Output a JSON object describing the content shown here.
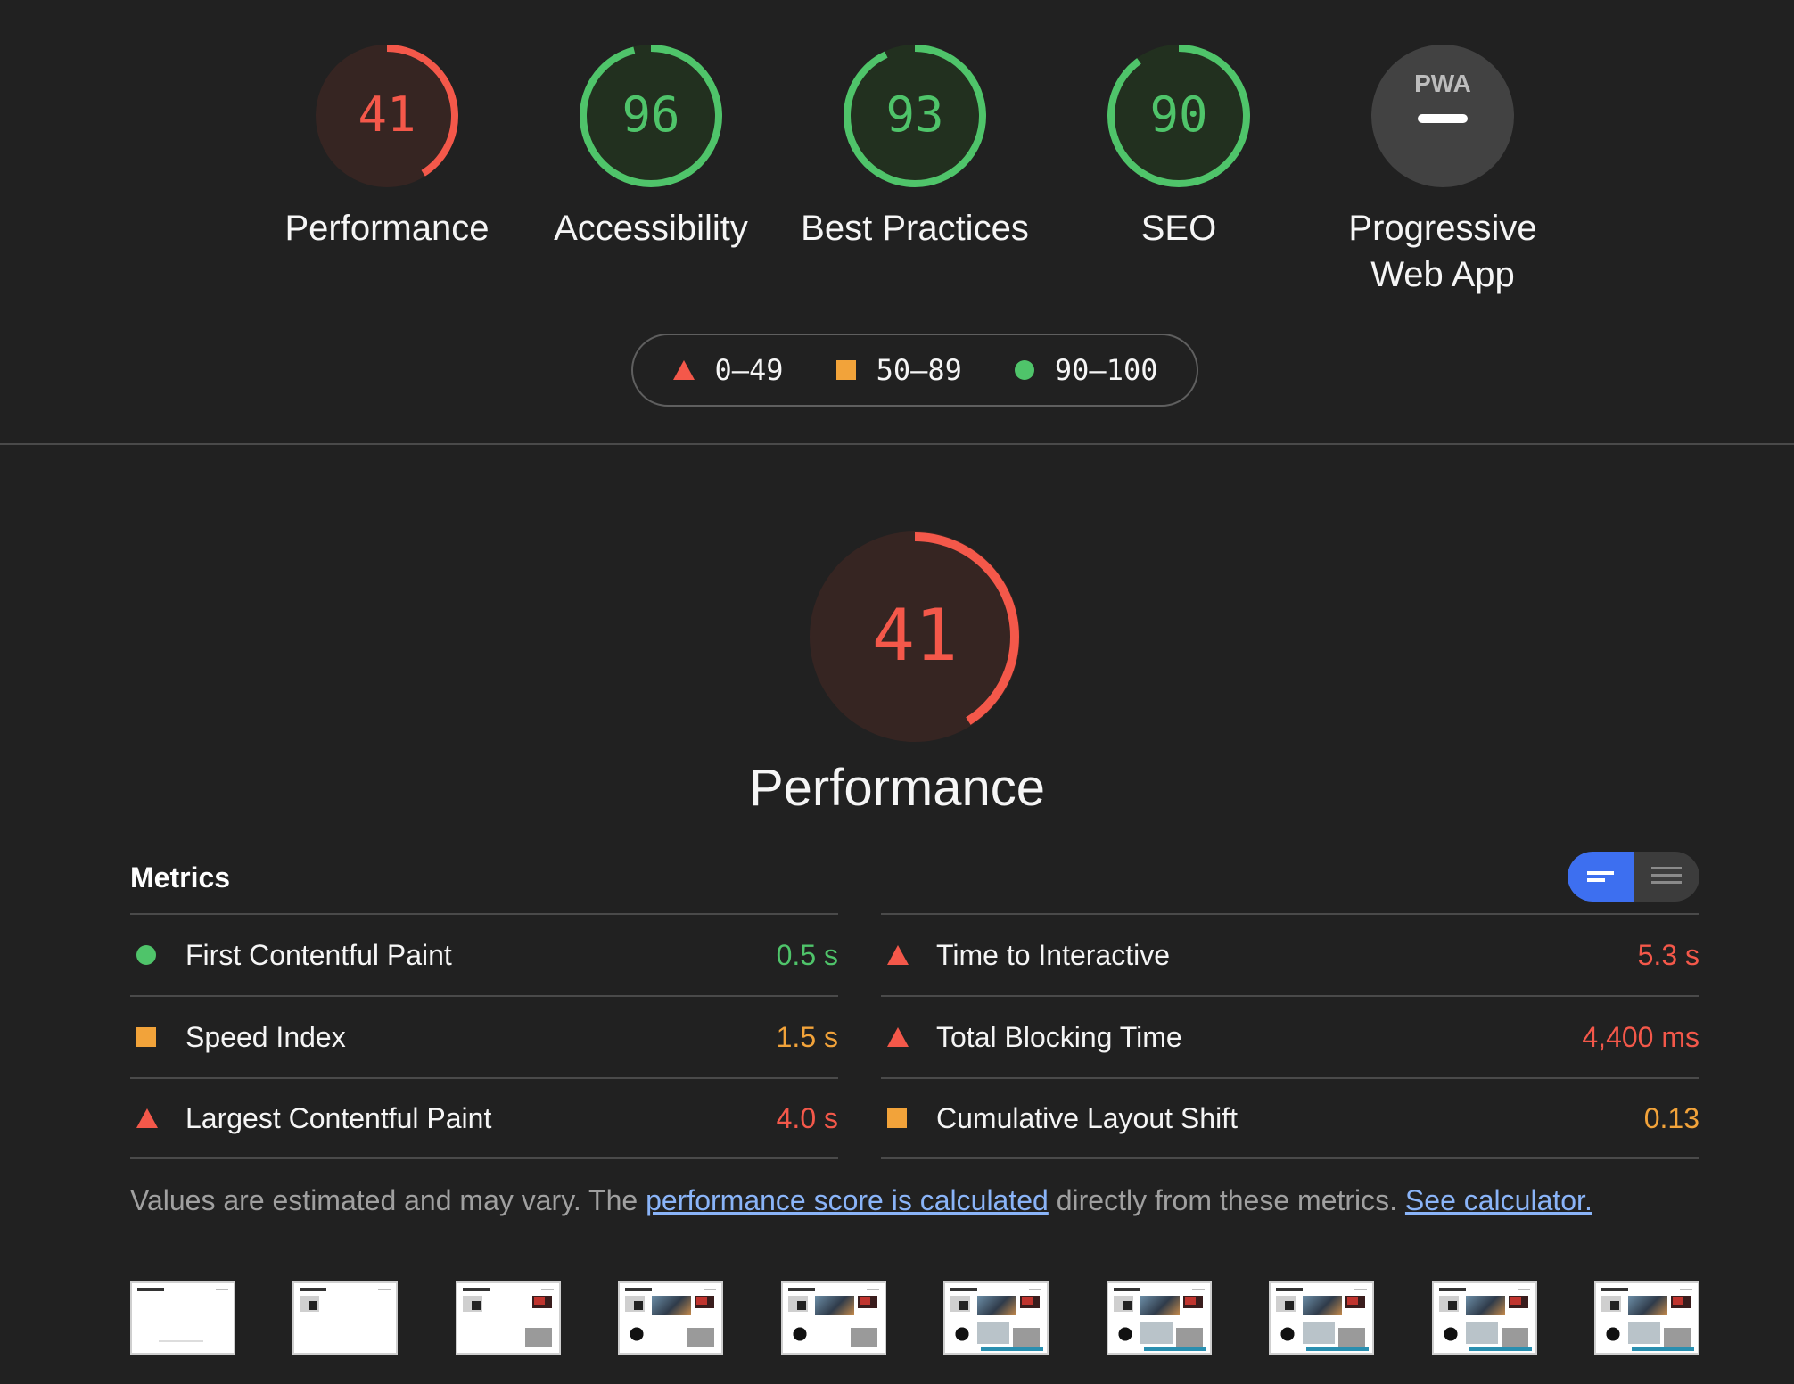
{
  "categories": [
    {
      "label": "Performance",
      "score": 41,
      "status": "fail"
    },
    {
      "label": "Accessibility",
      "score": 96,
      "status": "pass"
    },
    {
      "label": "Best Practices",
      "score": 93,
      "status": "pass"
    },
    {
      "label": "SEO",
      "score": 90,
      "status": "pass"
    },
    {
      "label": "Progressive Web App",
      "label_line1": "Progressive",
      "label_line2": "Web App",
      "badge": "PWA",
      "score": null,
      "status": "na"
    }
  ],
  "legend": {
    "fail": "0–49",
    "average": "50–89",
    "pass": "90–100"
  },
  "performance": {
    "score": 41,
    "title": "Performance"
  },
  "metrics": {
    "title": "Metrics",
    "left": [
      {
        "name": "First Contentful Paint",
        "value": "0.5 s",
        "status": "pass"
      },
      {
        "name": "Speed Index",
        "value": "1.5 s",
        "status": "average"
      },
      {
        "name": "Largest Contentful Paint",
        "value": "4.0 s",
        "status": "fail"
      }
    ],
    "right": [
      {
        "name": "Time to Interactive",
        "value": "5.3 s",
        "status": "fail"
      },
      {
        "name": "Total Blocking Time",
        "value": "4,400 ms",
        "status": "fail"
      },
      {
        "name": "Cumulative Layout Shift",
        "value": "0.13",
        "status": "average"
      }
    ]
  },
  "note": {
    "text_before": "Values are estimated and may vary. The ",
    "link1": "performance score is calculated",
    "text_middle": " directly from these metrics. ",
    "link2": "See calculator."
  },
  "filmstrip_frame_count": 10,
  "colors": {
    "fail": "#f4584a",
    "average": "#f2a33a",
    "pass": "#4fc46a",
    "na": "#9e9e9e",
    "toggle_active": "#3d6ff0",
    "link": "#8ab4f8"
  }
}
